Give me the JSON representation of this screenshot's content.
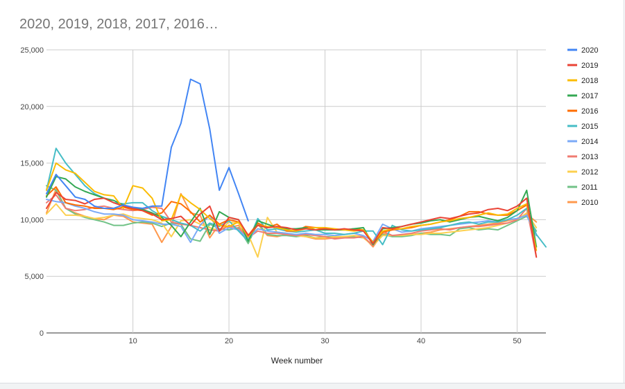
{
  "chart_data": {
    "type": "line",
    "title": "2020, 2019, 2018, 2017, 2016…",
    "xlabel": "Week number",
    "ylabel": "",
    "xlim": [
      1,
      53
    ],
    "ylim": [
      0,
      25000
    ],
    "x_ticks": [
      10,
      20,
      30,
      40,
      50
    ],
    "y_ticks": [
      0,
      5000,
      10000,
      15000,
      20000,
      25000
    ],
    "y_tick_labels": [
      "0",
      "5,000",
      "10,000",
      "15,000",
      "20,000",
      "25,000"
    ],
    "grid": true,
    "legend_position": "right",
    "series": [
      {
        "name": "2020",
        "color": "#4285f4",
        "x": [
          1,
          2,
          3,
          4,
          5,
          6,
          7,
          8,
          9,
          10,
          11,
          12,
          13,
          14,
          15,
          16,
          17,
          18,
          19,
          20,
          21,
          22
        ],
        "values": [
          12300,
          14000,
          13000,
          12000,
          11800,
          11200,
          11000,
          11000,
          11300,
          11100,
          11000,
          11200,
          11200,
          16400,
          18500,
          22400,
          22000,
          18000,
          12600,
          14600,
          12300,
          9900
        ]
      },
      {
        "name": "2019",
        "color": "#ea4335",
        "x": [
          1,
          2,
          3,
          4,
          5,
          6,
          7,
          8,
          9,
          10,
          11,
          12,
          13,
          14,
          15,
          16,
          17,
          18,
          19,
          20,
          21,
          22,
          23,
          24,
          25,
          26,
          27,
          28,
          29,
          30,
          31,
          32,
          33,
          34,
          35,
          36,
          37,
          38,
          39,
          40,
          41,
          42,
          43,
          44,
          45,
          46,
          47,
          48,
          49,
          50,
          51,
          52
        ],
        "values": [
          11000,
          12400,
          11800,
          11700,
          11400,
          11800,
          11900,
          11500,
          11200,
          11000,
          10800,
          10500,
          10000,
          10100,
          10300,
          9500,
          10500,
          11200,
          9000,
          10200,
          10000,
          8600,
          9500,
          9300,
          9400,
          9300,
          9100,
          9200,
          9100,
          9200,
          9100,
          9200,
          9100,
          9000,
          7900,
          9300,
          9200,
          9400,
          9600,
          9800,
          10000,
          10200,
          10100,
          10300,
          10500,
          10600,
          10900,
          11000,
          10800,
          11200,
          11900,
          6700
        ]
      },
      {
        "name": "2018",
        "color": "#fbbc04",
        "x": [
          1,
          2,
          3,
          4,
          5,
          6,
          7,
          8,
          9,
          10,
          11,
          12,
          13,
          14,
          15,
          16,
          17,
          18,
          19,
          20,
          21,
          22,
          23,
          24,
          25,
          26,
          27,
          28,
          29,
          30,
          31,
          32,
          33,
          34,
          35,
          36,
          37,
          38,
          39,
          40,
          41,
          42,
          43,
          44,
          45,
          46,
          47,
          48,
          49,
          50,
          51,
          52
        ],
        "values": [
          12600,
          15000,
          14400,
          14100,
          13300,
          12500,
          12200,
          12100,
          11000,
          13000,
          12800,
          11900,
          9900,
          10000,
          12200,
          11500,
          10900,
          10100,
          9500,
          9400,
          9800,
          8500,
          9500,
          9400,
          9300,
          9100,
          9000,
          9200,
          9300,
          9300,
          9200,
          9100,
          9000,
          9100,
          8000,
          9000,
          9200,
          9200,
          9400,
          9500,
          9600,
          9800,
          9900,
          10100,
          10200,
          10400,
          10600,
          10400,
          10500,
          11000,
          11400,
          7300
        ]
      },
      {
        "name": "2017",
        "color": "#34a853",
        "x": [
          1,
          2,
          3,
          4,
          5,
          6,
          7,
          8,
          9,
          10,
          11,
          12,
          13,
          14,
          15,
          16,
          17,
          18,
          19,
          20,
          21,
          22,
          23,
          24,
          25,
          26,
          27,
          28,
          29,
          30,
          31,
          32,
          33,
          34,
          35,
          36,
          37,
          38,
          39,
          40,
          41,
          42,
          43,
          44,
          45,
          46,
          47,
          48,
          49,
          50,
          51,
          52
        ],
        "values": [
          12000,
          13800,
          13600,
          12900,
          12500,
          12200,
          11900,
          11700,
          11300,
          11000,
          10900,
          10600,
          10200,
          9500,
          8500,
          9800,
          11000,
          8700,
          10700,
          10200,
          10000,
          8100,
          9900,
          9600,
          9300,
          9200,
          9200,
          9300,
          9100,
          9100,
          9100,
          9100,
          9200,
          9300,
          7800,
          9200,
          9300,
          9400,
          9600,
          9700,
          9900,
          10000,
          9800,
          10000,
          10200,
          10300,
          10100,
          9900,
          10200,
          10800,
          12600,
          7600
        ]
      },
      {
        "name": "2016",
        "color": "#ff6d01",
        "x": [
          1,
          2,
          3,
          4,
          5,
          6,
          7,
          8,
          9,
          10,
          11,
          12,
          13,
          14,
          15,
          16,
          17,
          18,
          19,
          20,
          21,
          22,
          23,
          24,
          25,
          26,
          27,
          28,
          29,
          30,
          31,
          32,
          33,
          34,
          35,
          36,
          37,
          38,
          39,
          40,
          41,
          42,
          43,
          44,
          45,
          46,
          47,
          48,
          49,
          50,
          51,
          52
        ],
        "values": [
          12100,
          12900,
          11500,
          11300,
          11200,
          11000,
          11000,
          10900,
          11100,
          10900,
          10800,
          10400,
          10600,
          11600,
          11400,
          10700,
          9800,
          10400,
          9600,
          10000,
          9800,
          8600,
          9700,
          9300,
          9600,
          9000,
          9000,
          9400,
          9300,
          9200,
          9100,
          9100,
          9200,
          9100,
          7800,
          8900,
          9100,
          9200,
          9300,
          9500,
          9600,
          9800,
          10000,
          10300,
          10700,
          10700,
          10500,
          10400,
          10400,
          10800,
          11300,
          7600
        ]
      },
      {
        "name": "2015",
        "color": "#46bdc6",
        "x": [
          1,
          2,
          3,
          4,
          5,
          6,
          7,
          8,
          9,
          10,
          11,
          12,
          13,
          14,
          15,
          16,
          17,
          18,
          19,
          20,
          21,
          22,
          23,
          24,
          25,
          26,
          27,
          28,
          29,
          30,
          31,
          32,
          33,
          34,
          35,
          36,
          37,
          38,
          39,
          40,
          41,
          42,
          43,
          44,
          45,
          46,
          47,
          48,
          49,
          50,
          51,
          52,
          53
        ],
        "values": [
          12600,
          16300,
          15000,
          14000,
          13000,
          12300,
          11900,
          11500,
          11400,
          11500,
          11500,
          10800,
          10300,
          10000,
          9700,
          9500,
          9000,
          9700,
          9400,
          9900,
          9000,
          8100,
          10100,
          9100,
          9200,
          9000,
          8900,
          9000,
          9100,
          8800,
          8800,
          8700,
          8800,
          9000,
          9000,
          7800,
          9500,
          9100,
          9000,
          9100,
          9200,
          9300,
          9500,
          9700,
          9800,
          9600,
          9800,
          9800,
          10000,
          10400,
          11000,
          8700,
          7600
        ]
      },
      {
        "name": "2014",
        "color": "#7baaf7",
        "x": [
          1,
          2,
          3,
          4,
          5,
          6,
          7,
          8,
          9,
          10,
          11,
          12,
          13,
          14,
          15,
          16,
          17,
          18,
          19,
          20,
          21,
          22,
          23,
          24,
          25,
          26,
          27,
          28,
          29,
          30,
          31,
          32,
          33,
          34,
          35,
          36,
          37,
          38,
          39,
          40,
          41,
          42,
          43,
          44,
          45,
          46,
          47,
          48,
          49,
          50,
          51,
          52
        ],
        "values": [
          11800,
          11600,
          11500,
          11200,
          11000,
          10700,
          10500,
          10500,
          10400,
          10000,
          9900,
          9800,
          9600,
          9600,
          9400,
          8000,
          9500,
          10400,
          8800,
          9300,
          9100,
          8300,
          9200,
          9000,
          8900,
          8800,
          8700,
          8800,
          8700,
          8700,
          8600,
          8700,
          8800,
          8600,
          8100,
          9600,
          9200,
          8900,
          9000,
          9200,
          9300,
          9400,
          9500,
          9600,
          9700,
          9800,
          9900,
          9800,
          10000,
          10100,
          10400,
          8600
        ]
      },
      {
        "name": "2013",
        "color": "#f07b72",
        "x": [
          1,
          2,
          3,
          4,
          5,
          6,
          7,
          8,
          9,
          10,
          11,
          12,
          13,
          14,
          15,
          16,
          17,
          18,
          19,
          20,
          21,
          22,
          23,
          24,
          25,
          26,
          27,
          28,
          29,
          30,
          31,
          32,
          33,
          34,
          35,
          36,
          37,
          38,
          39,
          40,
          41,
          42,
          43,
          44,
          45,
          46,
          47,
          48,
          49,
          50,
          51,
          52
        ],
        "values": [
          11500,
          12200,
          11000,
          10800,
          10900,
          11100,
          11200,
          11000,
          10900,
          10800,
          10900,
          11100,
          11000,
          9800,
          9600,
          9500,
          9300,
          9100,
          9000,
          9500,
          9200,
          8400,
          9000,
          8800,
          8800,
          8700,
          8600,
          8700,
          8600,
          8500,
          8300,
          8400,
          8400,
          8500,
          7700,
          9000,
          8600,
          8700,
          8800,
          9000,
          9100,
          9200,
          9100,
          9300,
          9400,
          9400,
          9500,
          9600,
          9700,
          10000,
          11000,
          6700
        ]
      },
      {
        "name": "2012",
        "color": "#fcd04f",
        "x": [
          1,
          2,
          3,
          4,
          5,
          6,
          7,
          8,
          9,
          10,
          11,
          12,
          13,
          14,
          15,
          16,
          17,
          18,
          19,
          20,
          21,
          22,
          23,
          24,
          25,
          26,
          27,
          28,
          29,
          30,
          31,
          32,
          33,
          34,
          35,
          36,
          37,
          38,
          39,
          40,
          41,
          42,
          43,
          44,
          45,
          46,
          47,
          48,
          49,
          50,
          51,
          52
        ],
        "values": [
          10500,
          11400,
          10400,
          10400,
          10300,
          10100,
          10200,
          10400,
          10500,
          10200,
          10100,
          10000,
          9700,
          8500,
          9900,
          10000,
          9600,
          9300,
          9000,
          9800,
          9700,
          8700,
          6700,
          10200,
          8900,
          8800,
          8600,
          8500,
          8400,
          8400,
          8500,
          8500,
          8600,
          8400,
          7700,
          8600,
          8600,
          8600,
          8700,
          8700,
          8800,
          8800,
          8900,
          9000,
          9100,
          9200,
          9300,
          9500,
          9700,
          10000,
          10600,
          9300
        ]
      },
      {
        "name": "2011",
        "color": "#71c287",
        "x": [
          1,
          2,
          3,
          4,
          5,
          6,
          7,
          8,
          9,
          10,
          11,
          12,
          13,
          14,
          15,
          16,
          17,
          18,
          19,
          20,
          21,
          22,
          23,
          24,
          25,
          26,
          27,
          28,
          29,
          30,
          31,
          32,
          33,
          34,
          35,
          36,
          37,
          38,
          39,
          40,
          41,
          42,
          43,
          44,
          45,
          46,
          47,
          48,
          49,
          50,
          51,
          52
        ],
        "values": [
          13000,
          12600,
          11000,
          10500,
          10200,
          10000,
          9800,
          9500,
          9500,
          9700,
          9800,
          9700,
          9400,
          9700,
          9600,
          8300,
          8100,
          9600,
          9200,
          9100,
          9300,
          7900,
          9700,
          8700,
          8600,
          8600,
          8500,
          8600,
          8400,
          8500,
          8500,
          8500,
          8500,
          8400,
          7800,
          8700,
          8500,
          8500,
          8600,
          8800,
          8700,
          8700,
          8600,
          9200,
          9300,
          9100,
          9200,
          9100,
          9500,
          9900,
          10300,
          9000
        ]
      },
      {
        "name": "2010",
        "color": "#ff994d",
        "x": [
          1,
          2,
          3,
          4,
          5,
          6,
          7,
          8,
          9,
          10,
          11,
          12,
          13,
          14,
          15,
          16,
          17,
          18,
          19,
          20,
          21,
          22,
          23,
          24,
          25,
          26,
          27,
          28,
          29,
          30,
          31,
          32,
          33,
          34,
          35,
          36,
          37,
          38,
          39,
          40,
          41,
          42,
          43,
          44,
          45,
          46,
          47,
          48,
          49,
          50,
          51,
          52
        ],
        "values": [
          10600,
          12700,
          11000,
          10600,
          10300,
          10100,
          10000,
          10400,
          10300,
          9800,
          9700,
          9600,
          8000,
          9400,
          12300,
          10600,
          10400,
          8400,
          9600,
          9300,
          9500,
          8200,
          9600,
          8600,
          8500,
          8700,
          8600,
          8500,
          8300,
          8300,
          8400,
          8400,
          8600,
          8500,
          7600,
          8800,
          8600,
          8600,
          8700,
          8800,
          8900,
          9100,
          9200,
          9300,
          9400,
          9500,
          9600,
          9700,
          9900,
          10100,
          10500,
          9800
        ]
      }
    ]
  }
}
